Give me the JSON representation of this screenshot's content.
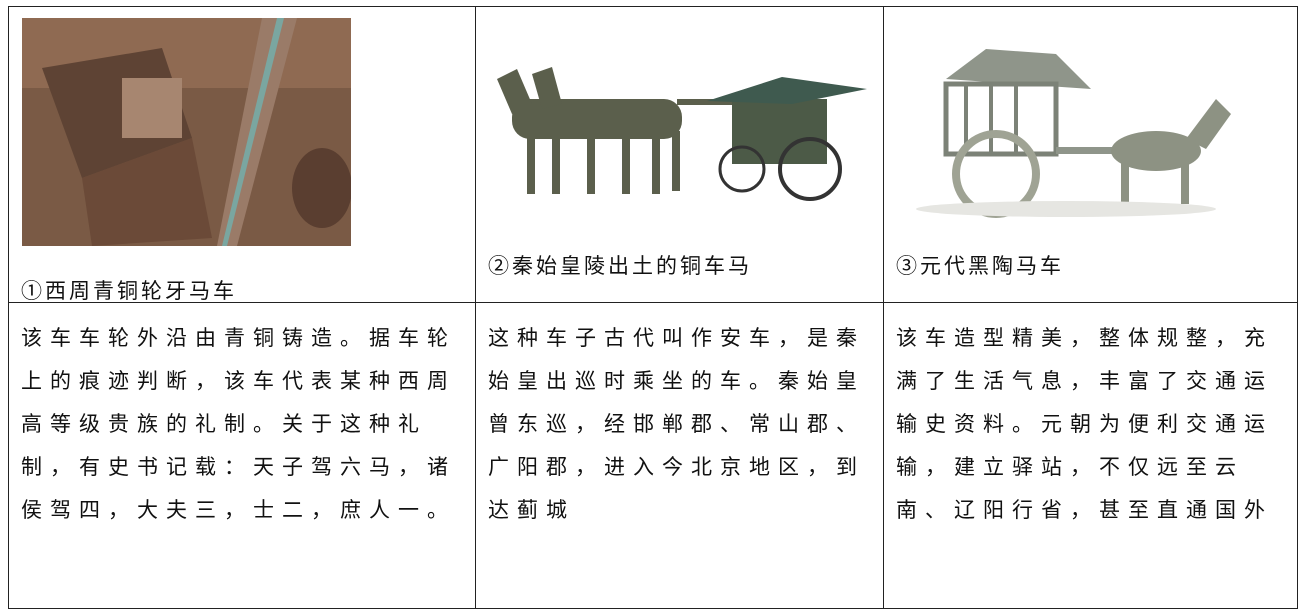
{
  "table": {
    "rows": [
      [
        "①西周青铜轮牙马车",
        "②秦始皇陵出土的铜车马",
        "③元代黑陶马车"
      ],
      [
        [
          "该车车轮外沿由青铜铸造。据车轮",
          "上的痕迹判断，该车代表某种西周",
          "高等级贵族的礼制。关于这种礼",
          "制，有史书记载：天子驾六马，诸",
          "侯驾四，大夫三，士二，庶人一。"
        ],
        [
          "这种车子古代叫作安车，是秦",
          "始皇出巡时乘坐的车。秦始皇",
          "曾东巡，经邯郸郡、常山郡、",
          "广阳郡，进入今北京地区，到",
          "达蓟城"
        ],
        [
          "该车造型精美，整体规整，充",
          "满了生活气息，丰富了交通运",
          "输史资料。元朝为便利交通运",
          "输，建立驿站，不仅远至云",
          "南、辽阳行省，甚至直通国外"
        ]
      ]
    ]
  }
}
